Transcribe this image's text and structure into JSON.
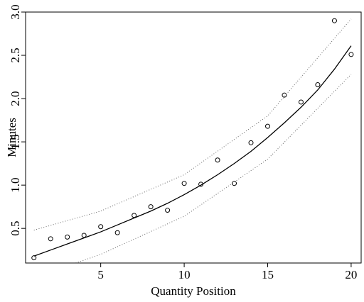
{
  "chart_data": {
    "type": "scatter",
    "title": "",
    "xlabel": "Quantity Position",
    "ylabel": "Minutes",
    "xlim": [
      0.5,
      20.6
    ],
    "ylim": [
      0.1,
      3.0
    ],
    "x_ticks": [
      "5",
      "10",
      "15",
      "20"
    ],
    "y_ticks": [
      "0.5",
      "1.0",
      "1.5",
      "2.0",
      "2.5",
      "3.0"
    ],
    "grid": false,
    "legend": "none",
    "series": [
      {
        "kind": "points",
        "marker": "open-circle",
        "x": [
          1,
          2,
          3,
          4,
          5,
          6,
          7,
          8,
          9,
          10,
          11,
          12,
          13,
          14,
          15,
          16,
          17,
          18,
          19,
          20
        ],
        "y": [
          0.16,
          0.38,
          0.4,
          0.42,
          0.52,
          0.45,
          0.65,
          0.75,
          0.71,
          1.02,
          1.01,
          1.29,
          1.02,
          1.49,
          1.68,
          2.04,
          1.96,
          2.16,
          2.9,
          2.51
        ]
      },
      {
        "kind": "fit-line",
        "style": "solid",
        "x": [
          1,
          2,
          3,
          4,
          5,
          6,
          7,
          8,
          9,
          10,
          11,
          12,
          13,
          14,
          15,
          16,
          17,
          18,
          19,
          20
        ],
        "y": [
          0.18,
          0.25,
          0.32,
          0.39,
          0.46,
          0.54,
          0.62,
          0.7,
          0.79,
          0.89,
          1.0,
          1.12,
          1.25,
          1.39,
          1.55,
          1.72,
          1.9,
          2.1,
          2.34,
          2.61
        ]
      },
      {
        "kind": "upper-band",
        "style": "dotted",
        "x": [
          1,
          5,
          10,
          15,
          20
        ],
        "y": [
          0.48,
          0.7,
          1.12,
          1.8,
          2.92
        ]
      },
      {
        "kind": "lower-band",
        "style": "dotted",
        "x": [
          3.5,
          5,
          10,
          15,
          20
        ],
        "y": [
          0.1,
          0.2,
          0.64,
          1.3,
          2.28
        ]
      }
    ]
  }
}
